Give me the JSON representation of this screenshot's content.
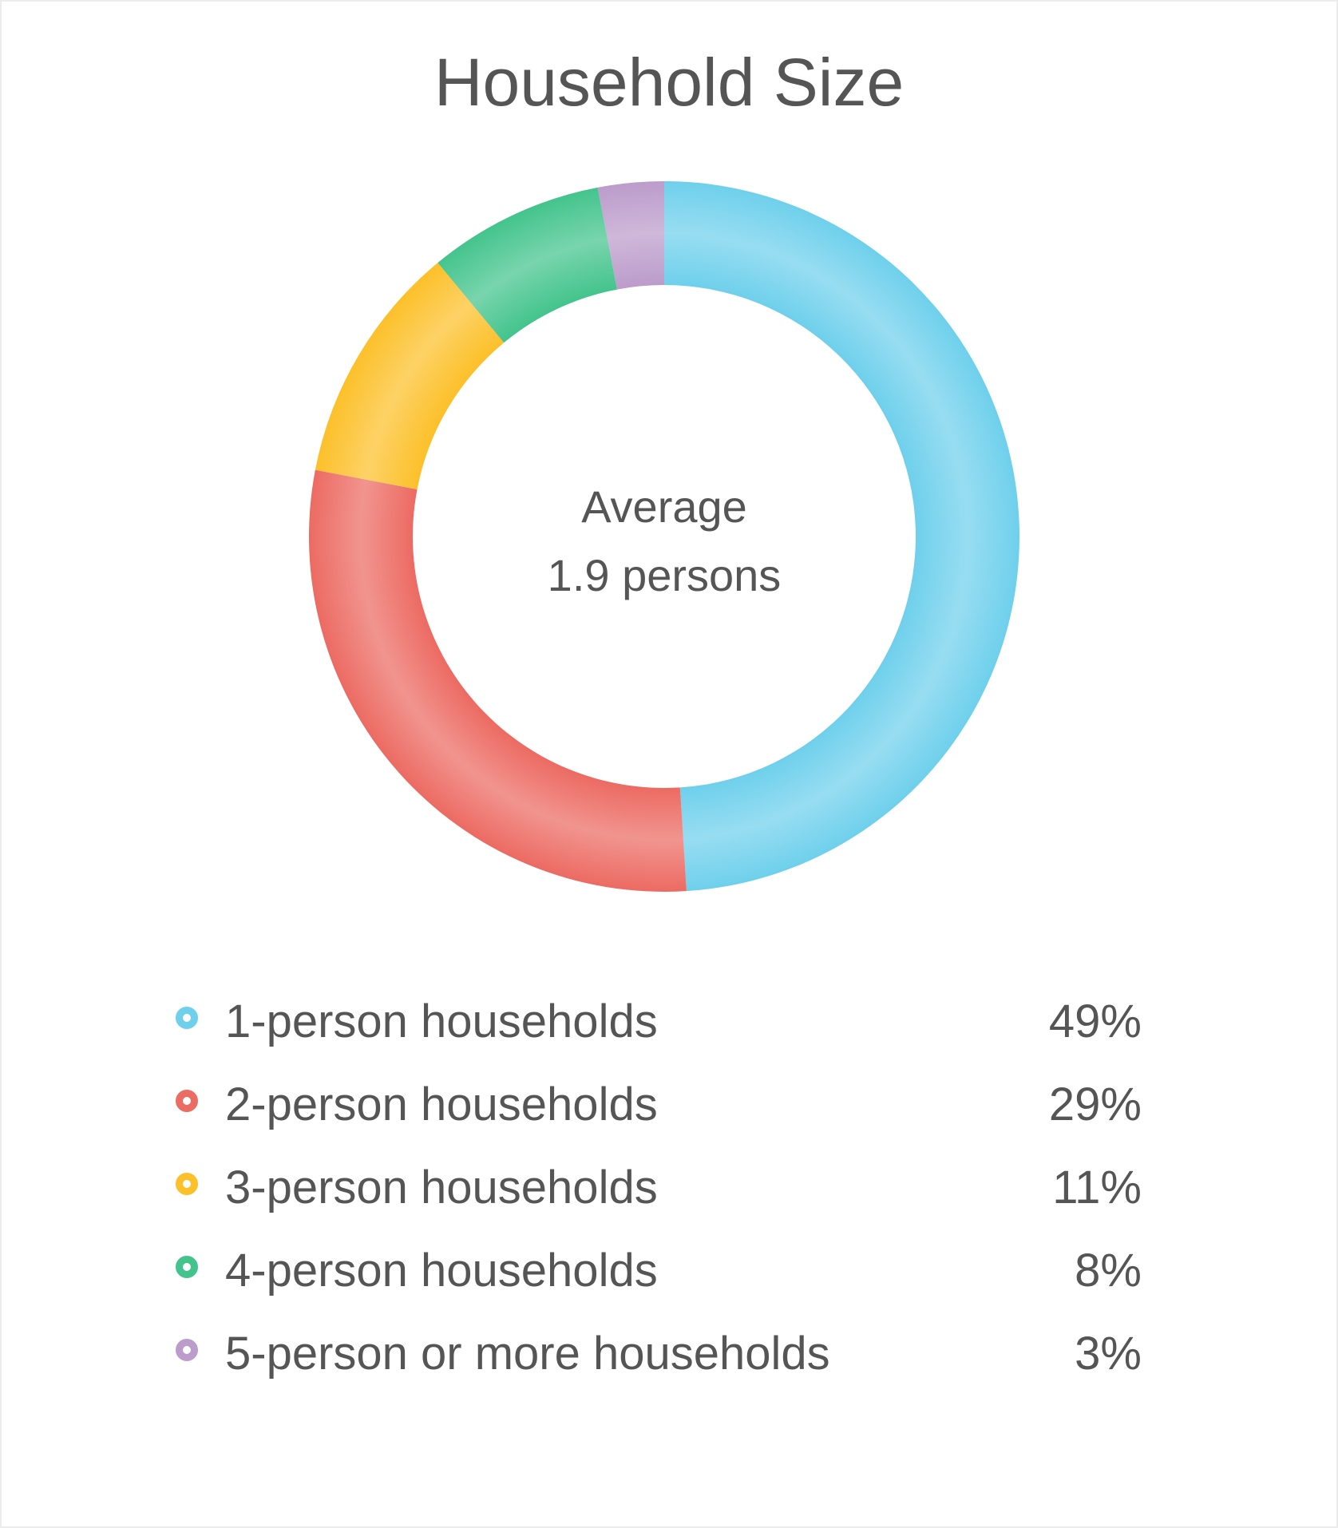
{
  "chart_data": {
    "type": "pie",
    "title": "Household Size",
    "center_label": {
      "line1": "Average",
      "line2": "1.9 persons"
    },
    "slices": [
      {
        "label": "1-person households",
        "value": 49,
        "display": "49%",
        "color": "#6fd0ec"
      },
      {
        "label": "2-person households",
        "value": 29,
        "display": "29%",
        "color": "#ec6b63"
      },
      {
        "label": "3-person households",
        "value": 11,
        "display": "11%",
        "color": "#fcc02a"
      },
      {
        "label": "4-person households",
        "value": 8,
        "display": "8%",
        "color": "#44c48d"
      },
      {
        "label": "5-person or more households",
        "value": 3,
        "display": "3%",
        "color": "#bc9ccb"
      }
    ],
    "legend_placement": "bottom"
  }
}
